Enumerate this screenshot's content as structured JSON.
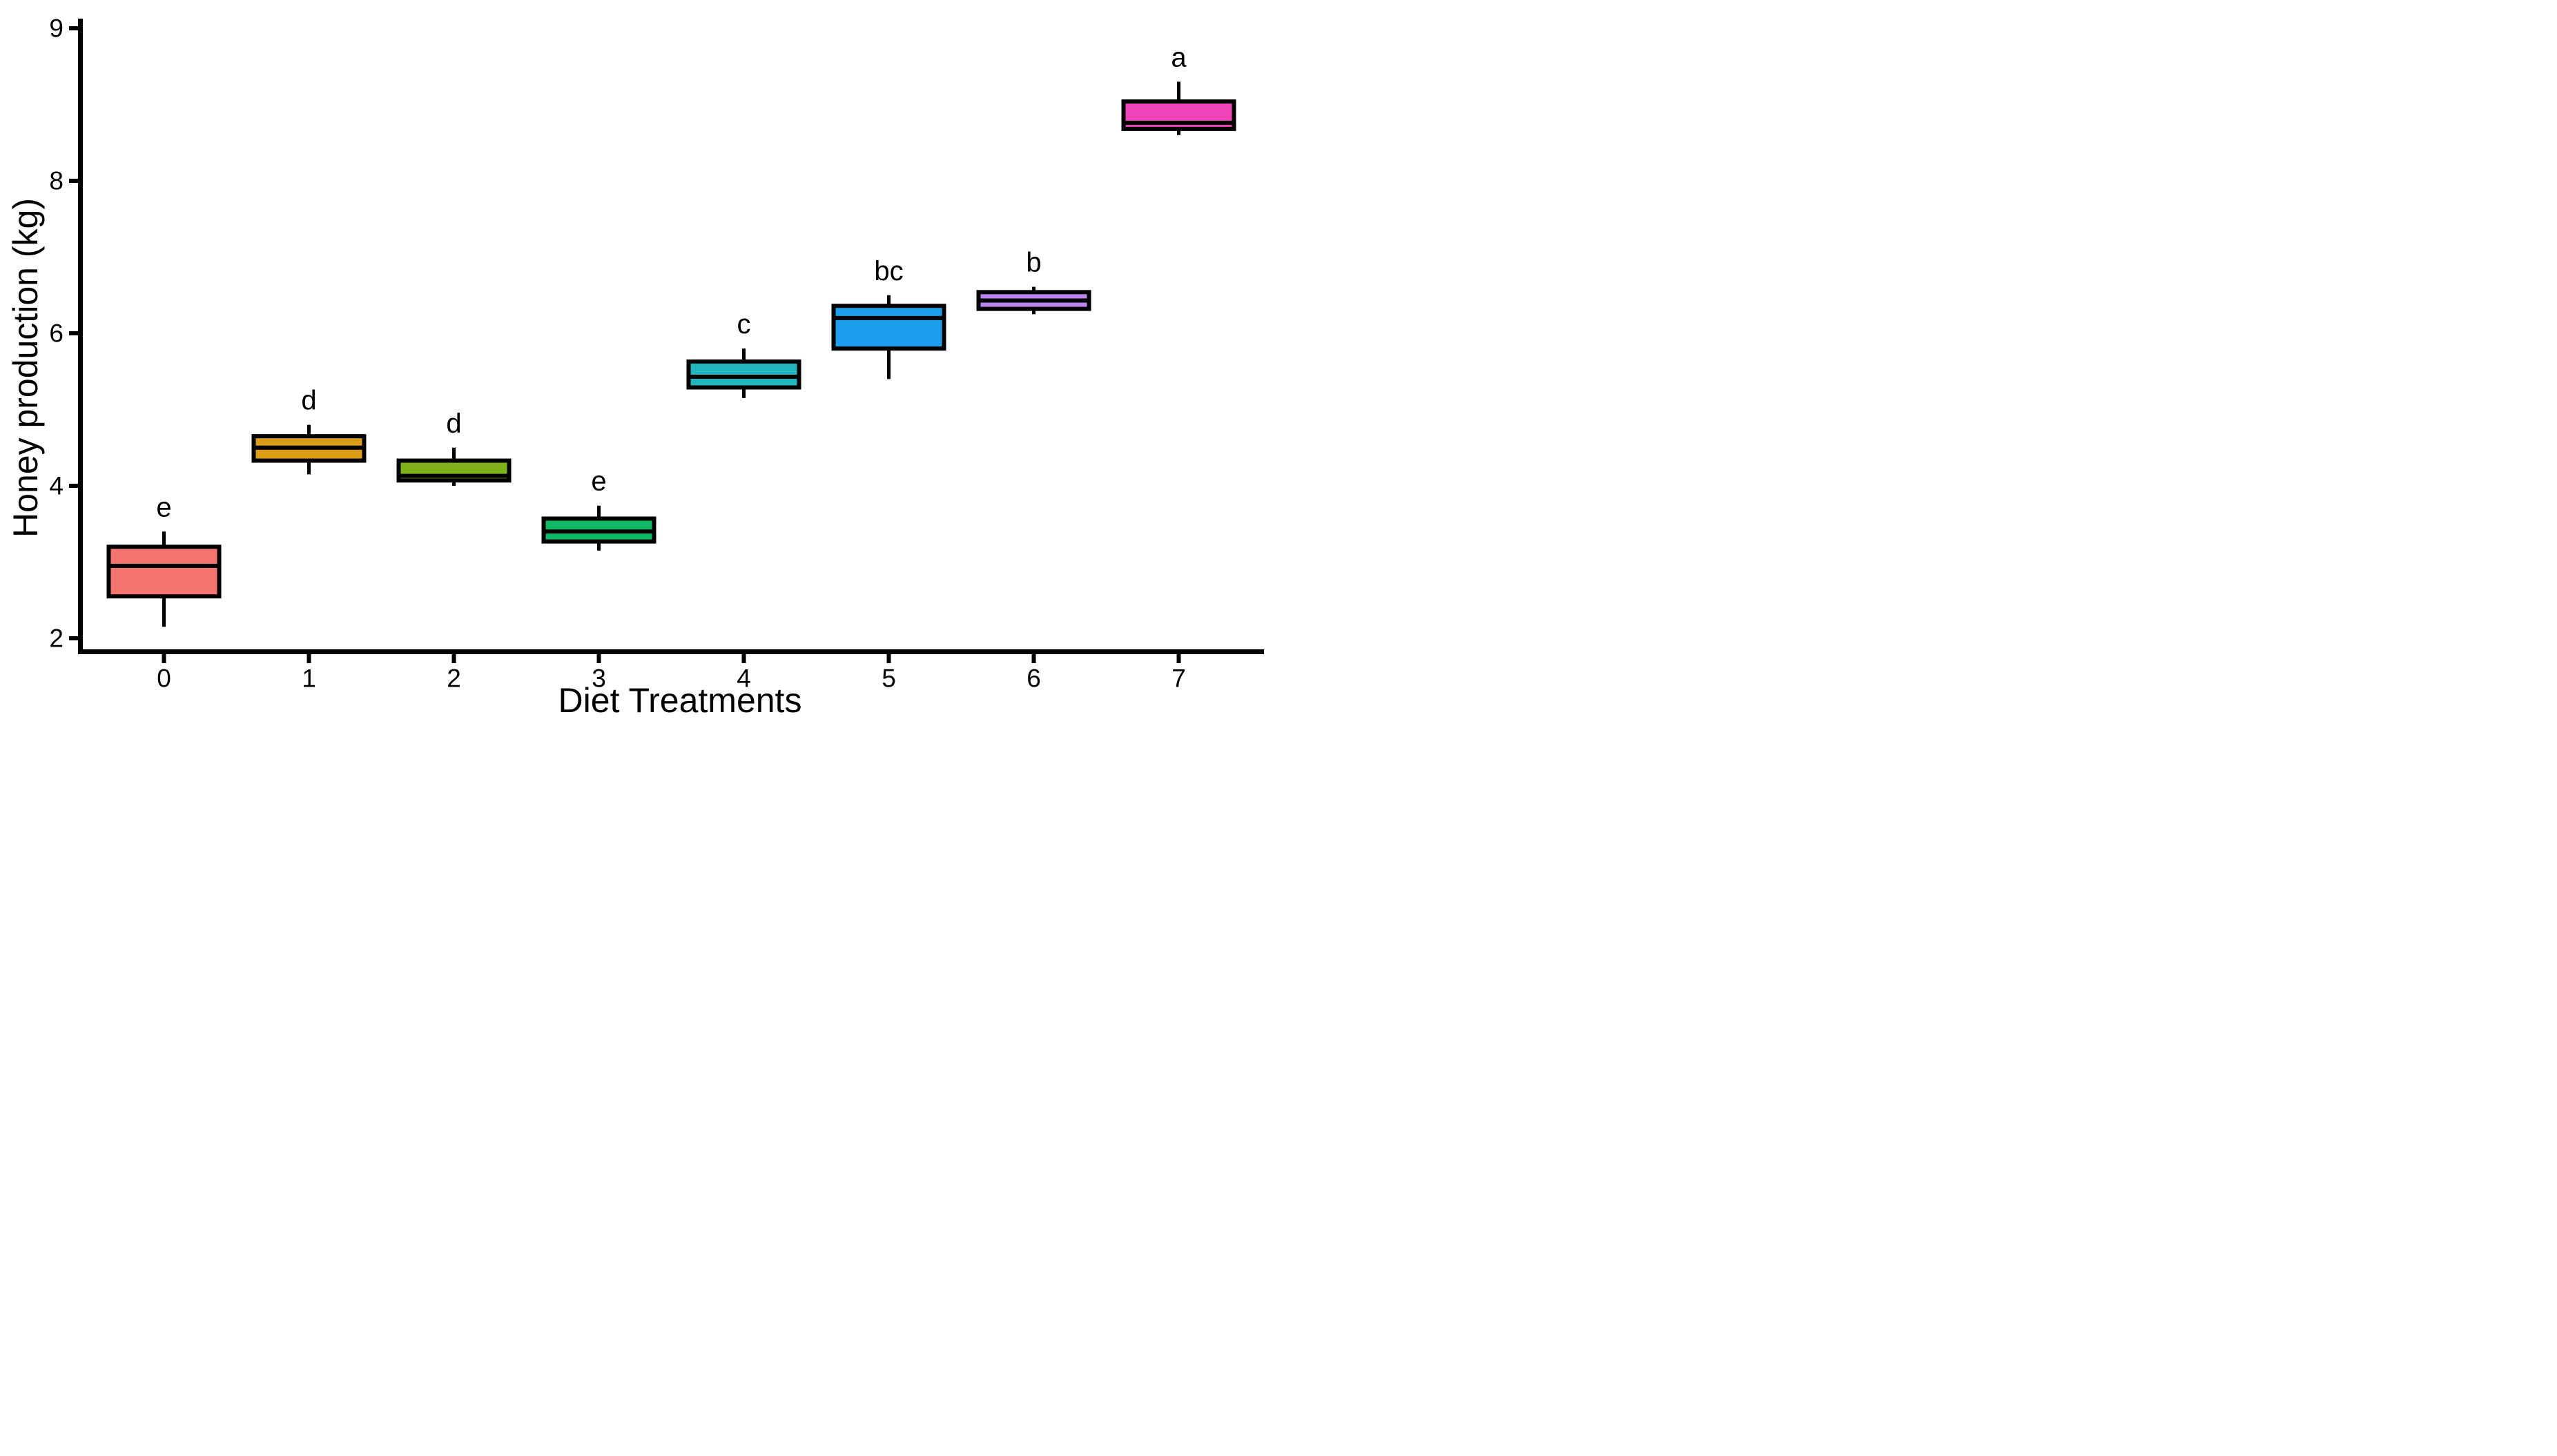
{
  "figure": {
    "background_color": "#FFFFFF",
    "axis_color": "#000000",
    "text_color": "#000000"
  },
  "chart_data": {
    "type": "boxplot",
    "title": "",
    "xlabel": "Diet Treatments",
    "ylabel": "Honey production (kg)",
    "categories": [
      "0",
      "1",
      "2",
      "3",
      "4",
      "5",
      "6",
      "7"
    ],
    "y_axis": {
      "tick_labels": [
        "9",
        "8",
        "6",
        "4",
        "2"
      ],
      "tick_values": [
        9,
        8,
        6,
        4,
        2
      ],
      "layout_hint": "tick labels equally spaced top-to-bottom (compressed nonlinear axis); grid off"
    },
    "series": [
      {
        "category": "0",
        "sig_letter": "e",
        "color": "#F4756F",
        "whisker_low": 2.15,
        "q1": 2.55,
        "median": 2.95,
        "q3": 3.2,
        "whisker_high": 3.4
      },
      {
        "category": "1",
        "sig_letter": "d",
        "color": "#DB9D16",
        "whisker_low": 4.15,
        "q1": 4.33,
        "median": 4.5,
        "q3": 4.65,
        "whisker_high": 4.8
      },
      {
        "category": "2",
        "sig_letter": "d",
        "color": "#7FB218",
        "whisker_low": 4.0,
        "q1": 4.07,
        "median": 4.13,
        "q3": 4.33,
        "whisker_high": 4.5
      },
      {
        "category": "3",
        "sig_letter": "e",
        "color": "#0EB965",
        "whisker_low": 3.15,
        "q1": 3.27,
        "median": 3.4,
        "q3": 3.57,
        "whisker_high": 3.74
      },
      {
        "category": "4",
        "sig_letter": "c",
        "color": "#23B6BF",
        "whisker_low": 5.15,
        "q1": 5.29,
        "median": 5.43,
        "q3": 5.63,
        "whisker_high": 5.8
      },
      {
        "category": "5",
        "sig_letter": "bc",
        "color": "#1C9FEC",
        "whisker_low": 5.4,
        "q1": 5.8,
        "median": 6.2,
        "q3": 6.36,
        "whisker_high": 6.5
      },
      {
        "category": "6",
        "sig_letter": "b",
        "color": "#BC84EE",
        "whisker_low": 6.25,
        "q1": 6.32,
        "median": 6.43,
        "q3": 6.54,
        "whisker_high": 6.61
      },
      {
        "category": "7",
        "sig_letter": "a",
        "color": "#EF43B7",
        "whisker_low": 8.3,
        "q1": 8.34,
        "median": 8.38,
        "q3": 8.52,
        "whisker_high": 8.65
      }
    ]
  }
}
